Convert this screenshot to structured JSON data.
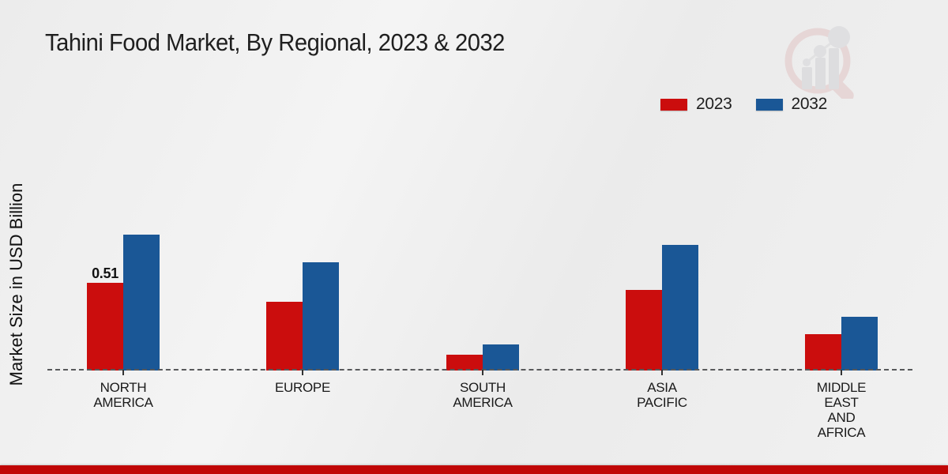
{
  "title": "Tahini Food Market, By Regional, 2023 & 2032",
  "watermark_icon": "magnifier-bar-chart-logo",
  "accent": {
    "bottom_band_color": "#c00606",
    "baseline_color": "#58595b"
  },
  "chart_data": {
    "type": "bar",
    "title": "Tahini Food Market, By Regional, 2023 & 2032",
    "xlabel": "",
    "ylabel": "Market Size in USD Billion",
    "axis_style": "dashed-baseline-only, no y-axis ticks, no gridlines",
    "legend_position": "top-right",
    "ylim": [
      0,
      1.0
    ],
    "categories": [
      "NORTH AMERICA",
      "EUROPE",
      "SOUTH AMERICA",
      "ASIA PACIFIC",
      "MIDDLE EAST AND AFRICA"
    ],
    "category_lines": [
      [
        "NORTH",
        "AMERICA"
      ],
      [
        "EUROPE"
      ],
      [
        "SOUTH",
        "AMERICA"
      ],
      [
        "ASIA",
        "PACIFIC"
      ],
      [
        "MIDDLE",
        "EAST",
        "AND",
        "AFRICA"
      ]
    ],
    "series": [
      {
        "name": "2023",
        "color": "#cb0d0d",
        "values": [
          0.51,
          0.4,
          0.09,
          0.47,
          0.21
        ]
      },
      {
        "name": "2032",
        "color": "#1a5796",
        "values": [
          0.79,
          0.63,
          0.15,
          0.73,
          0.31
        ]
      }
    ],
    "annotations": [
      {
        "series": "2023",
        "category_index": 0,
        "text": "0.51"
      }
    ]
  }
}
